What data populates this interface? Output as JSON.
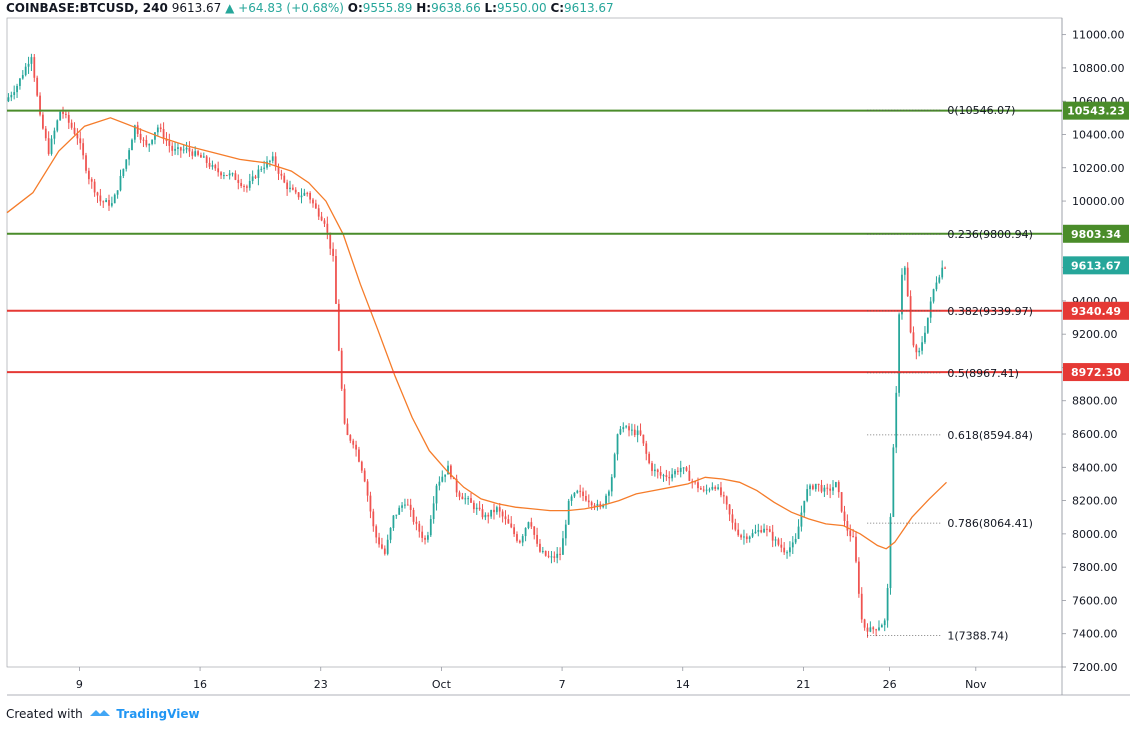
{
  "header": {
    "symbol": "COINBASE:BTCUSD, 240",
    "last": "9613.67",
    "change": "▲ +64.83 (+0.68%)",
    "o_label": "O:",
    "o_value": "9555.89",
    "h_label": "H:",
    "h_value": "9638.66",
    "l_label": "L:",
    "l_value": "9550.00",
    "c_label": "C:",
    "c_value": "9613.67"
  },
  "footer": {
    "created_with": "Created with",
    "brand": "TradingView",
    "brand_icon": "tradingview-logo-icon"
  },
  "colors": {
    "up": "#26a69a",
    "down": "#ef5350",
    "ma": "#f57c2a",
    "green_line": "#4a8c2a",
    "red_line": "#e53935",
    "last_price_label": "#26a69a"
  },
  "chart_data": {
    "type": "candlestick",
    "title": "",
    "timeframe": "240",
    "ylim": [
      7200,
      11100
    ],
    "y_ticks": [
      "11000.00",
      "10800.00",
      "10600.00",
      "10400.00",
      "10200.00",
      "10000.00",
      "9800.00",
      "9600.00",
      "9400.00",
      "9200.00",
      "9000.00",
      "8800.00",
      "8600.00",
      "8400.00",
      "8200.00",
      "8000.00",
      "7800.00",
      "7600.00",
      "7400.00",
      "7200.00"
    ],
    "x_ticks": [
      {
        "label": "9",
        "day": 9
      },
      {
        "label": "16",
        "day": 16
      },
      {
        "label": "23",
        "day": 23
      },
      {
        "label": "Oct",
        "day": 30
      },
      {
        "label": "7",
        "day": 37
      },
      {
        "label": "14",
        "day": 44
      },
      {
        "label": "21",
        "day": 51
      },
      {
        "label": "26",
        "day": 56
      },
      {
        "label": "Nov",
        "day": 61
      }
    ],
    "x_range_days": [
      4.8,
      66
    ],
    "price_path": [
      [
        4.8,
        10600
      ],
      [
        5.5,
        10700
      ],
      [
        6.3,
        10880
      ],
      [
        6.8,
        10500
      ],
      [
        7.3,
        10300
      ],
      [
        8.0,
        10550
      ],
      [
        9.0,
        10380
      ],
      [
        9.6,
        10150
      ],
      [
        10.3,
        10000
      ],
      [
        11.0,
        9980
      ],
      [
        11.8,
        10250
      ],
      [
        12.3,
        10450
      ],
      [
        13.0,
        10320
      ],
      [
        13.6,
        10450
      ],
      [
        14.5,
        10300
      ],
      [
        15.3,
        10310
      ],
      [
        16.3,
        10250
      ],
      [
        17.0,
        10180
      ],
      [
        18.0,
        10150
      ],
      [
        18.8,
        10080
      ],
      [
        19.6,
        10200
      ],
      [
        20.3,
        10250
      ],
      [
        21.0,
        10100
      ],
      [
        21.7,
        10030
      ],
      [
        22.3,
        10050
      ],
      [
        22.8,
        9950
      ],
      [
        23.3,
        9880
      ],
      [
        23.8,
        9650
      ],
      [
        24.2,
        9000
      ],
      [
        24.5,
        8600
      ],
      [
        25.0,
        8550
      ],
      [
        25.6,
        8350
      ],
      [
        26.2,
        8000
      ],
      [
        26.8,
        7880
      ],
      [
        27.3,
        8100
      ],
      [
        28.0,
        8200
      ],
      [
        28.6,
        8050
      ],
      [
        29.2,
        7950
      ],
      [
        29.8,
        8300
      ],
      [
        30.5,
        8400
      ],
      [
        31.0,
        8250
      ],
      [
        31.6,
        8200
      ],
      [
        32.1,
        8150
      ],
      [
        32.6,
        8100
      ],
      [
        33.3,
        8150
      ],
      [
        34.0,
        8050
      ],
      [
        34.6,
        7950
      ],
      [
        35.2,
        8100
      ],
      [
        35.7,
        7900
      ],
      [
        36.4,
        7850
      ],
      [
        37.0,
        7880
      ],
      [
        37.5,
        8200
      ],
      [
        38.0,
        8250
      ],
      [
        38.7,
        8200
      ],
      [
        39.3,
        8150
      ],
      [
        39.9,
        8300
      ],
      [
        40.4,
        8650
      ],
      [
        41.0,
        8620
      ],
      [
        41.6,
        8600
      ],
      [
        42.2,
        8400
      ],
      [
        42.8,
        8350
      ],
      [
        43.3,
        8350
      ],
      [
        44.0,
        8400
      ],
      [
        44.6,
        8320
      ],
      [
        45.3,
        8250
      ],
      [
        45.9,
        8300
      ],
      [
        46.5,
        8200
      ],
      [
        47.0,
        8050
      ],
      [
        47.5,
        7980
      ],
      [
        48.2,
        8000
      ],
      [
        48.8,
        8040
      ],
      [
        49.5,
        7950
      ],
      [
        50.0,
        7900
      ],
      [
        50.6,
        7940
      ],
      [
        51.2,
        8250
      ],
      [
        51.8,
        8300
      ],
      [
        52.4,
        8250
      ],
      [
        53.0,
        8300
      ],
      [
        53.5,
        8050
      ],
      [
        54.0,
        7960
      ],
      [
        54.5,
        7450
      ],
      [
        55.0,
        7420
      ],
      [
        55.5,
        7450
      ],
      [
        55.9,
        7480
      ],
      [
        56.2,
        8300
      ],
      [
        56.5,
        8900
      ],
      [
        56.7,
        9550
      ],
      [
        57.0,
        9600
      ],
      [
        57.3,
        9200
      ],
      [
        57.7,
        9050
      ],
      [
        58.2,
        9250
      ],
      [
        58.7,
        9500
      ],
      [
        59.2,
        9613.67
      ]
    ],
    "moving_average_path": [
      [
        4.8,
        9930
      ],
      [
        6.3,
        10050
      ],
      [
        7.8,
        10300
      ],
      [
        9.3,
        10450
      ],
      [
        10.8,
        10500
      ],
      [
        12.3,
        10440
      ],
      [
        13.8,
        10380
      ],
      [
        15.3,
        10330
      ],
      [
        16.8,
        10290
      ],
      [
        18.3,
        10250
      ],
      [
        19.8,
        10230
      ],
      [
        21.3,
        10180
      ],
      [
        22.3,
        10110
      ],
      [
        23.3,
        10000
      ],
      [
        24.3,
        9800
      ],
      [
        25.3,
        9500
      ],
      [
        26.3,
        9230
      ],
      [
        27.3,
        8950
      ],
      [
        28.3,
        8700
      ],
      [
        29.3,
        8500
      ],
      [
        30.3,
        8380
      ],
      [
        31.3,
        8280
      ],
      [
        32.3,
        8210
      ],
      [
        33.3,
        8180
      ],
      [
        34.3,
        8160
      ],
      [
        35.3,
        8150
      ],
      [
        36.3,
        8140
      ],
      [
        37.3,
        8140
      ],
      [
        38.3,
        8150
      ],
      [
        39.3,
        8170
      ],
      [
        40.3,
        8200
      ],
      [
        41.3,
        8240
      ],
      [
        42.3,
        8260
      ],
      [
        43.3,
        8280
      ],
      [
        44.3,
        8300
      ],
      [
        45.3,
        8340
      ],
      [
        46.3,
        8330
      ],
      [
        47.3,
        8310
      ],
      [
        48.3,
        8260
      ],
      [
        49.3,
        8190
      ],
      [
        50.3,
        8130
      ],
      [
        51.3,
        8090
      ],
      [
        52.3,
        8060
      ],
      [
        53.3,
        8050
      ],
      [
        54.3,
        8000
      ],
      [
        55.3,
        7930
      ],
      [
        55.8,
        7910
      ],
      [
        56.3,
        7950
      ],
      [
        57.3,
        8100
      ],
      [
        58.3,
        8210
      ],
      [
        59.3,
        8310
      ]
    ],
    "horizontal_levels": [
      {
        "label": "10543.23",
        "value": 10543.23,
        "color": "green"
      },
      {
        "label": "9803.34",
        "value": 9803.34,
        "color": "green"
      },
      {
        "label": "9340.49",
        "value": 9340.49,
        "color": "red"
      },
      {
        "label": "8972.30",
        "value": 8972.3,
        "color": "red"
      }
    ],
    "last_price": {
      "label": "9613.67",
      "value": 9613.67
    },
    "fibonacci": {
      "x_start_day": 54.7,
      "x_end_day": 59.0,
      "levels": [
        {
          "label": "0(10546.07)",
          "value": 10546.07
        },
        {
          "label": "0.236(9800.94)",
          "value": 9800.94
        },
        {
          "label": "0.382(9339.97)",
          "value": 9339.97
        },
        {
          "label": "0.5(8967.41)",
          "value": 8967.41
        },
        {
          "label": "0.618(8594.84)",
          "value": 8594.84
        },
        {
          "label": "0.786(8064.41)",
          "value": 8064.41
        },
        {
          "label": "1(7388.74)",
          "value": 7388.74
        }
      ]
    },
    "grid": false
  }
}
